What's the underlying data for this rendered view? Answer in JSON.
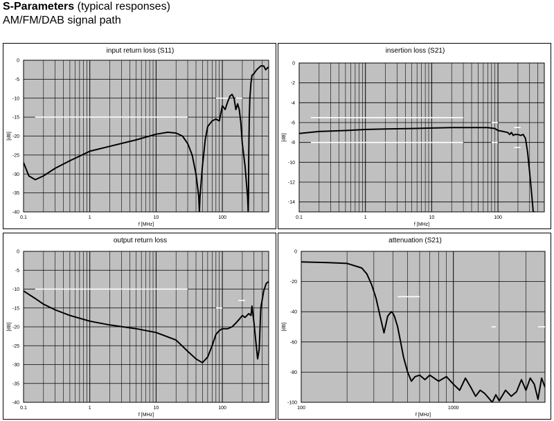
{
  "header": {
    "title_bold": "S-Parameters",
    "title_rest": "(typical responses)",
    "subtitle": "AM/FM/DAB signal path"
  },
  "chart_data": [
    {
      "id": "s11",
      "type": "line",
      "title": "input return loss (S11)",
      "xlabel": "f [MHz]",
      "ylabel": "[dB]",
      "xscale": "log",
      "xlim": [
        0.1,
        500
      ],
      "ylim": [
        -40,
        0
      ],
      "xticks": [
        0.1,
        1,
        10,
        100
      ],
      "xtick_labels": [
        "0.1",
        "1",
        "10",
        "100"
      ],
      "yticks": [
        0,
        -5,
        -10,
        -15,
        -20,
        -25,
        -30,
        -35,
        -40
      ],
      "ytick_labels": [
        "0",
        "-5",
        "-10",
        "-15",
        "-20",
        "-25",
        "-30",
        "-35",
        "-40"
      ],
      "grid": true,
      "series": [
        {
          "x": [
            0.1,
            0.12,
            0.15,
            0.2,
            0.3,
            0.5,
            1,
            2,
            5,
            10,
            15,
            20,
            25,
            30,
            35,
            40,
            44,
            45,
            46,
            50,
            55,
            60,
            70,
            80,
            90,
            100,
            110,
            120,
            130,
            140,
            150,
            160,
            170,
            180,
            190,
            200,
            220,
            240,
            245,
            248,
            250,
            255,
            260,
            270,
            280,
            300,
            330,
            380,
            420,
            450,
            480,
            500
          ],
          "y": [
            -27,
            -30.5,
            -31.5,
            -30.5,
            -28.5,
            -26.5,
            -24,
            -22.7,
            -21,
            -19.5,
            -19,
            -19.2,
            -20,
            -22,
            -25,
            -30,
            -36,
            -40,
            -36,
            -28,
            -21,
            -17.5,
            -16,
            -15.5,
            -16,
            -12,
            -13,
            -11,
            -9.5,
            -9,
            -10,
            -13,
            -11.5,
            -13,
            -16.5,
            -22,
            -28,
            -36,
            -40,
            -35,
            -25,
            -15,
            -10,
            -6,
            -4,
            -3.5,
            -2.5,
            -1.5,
            -1.5,
            -2.5,
            -2,
            -1.8
          ]
        }
      ],
      "limits": [
        {
          "x": [
            0.15,
            30
          ],
          "y": -15
        },
        {
          "x": [
            80,
            130
          ],
          "y": -10
        },
        {
          "x": [
            160,
            200
          ],
          "y": -10
        }
      ]
    },
    {
      "id": "s21",
      "type": "line",
      "title": "insertion loss (S21)",
      "xlabel": "f [MHz]",
      "ylabel": "[dB]",
      "xscale": "log",
      "xlim": [
        0.1,
        500
      ],
      "ylim": [
        -15,
        0
      ],
      "xticks": [
        0.1,
        1,
        10,
        100
      ],
      "xtick_labels": [
        "0.1",
        "1",
        "10",
        "100"
      ],
      "yticks": [
        0,
        -2,
        -4,
        -6,
        -8,
        -10,
        -12,
        -14
      ],
      "ytick_labels": [
        "0",
        "-2",
        "-4",
        "-6",
        "-8",
        "-10",
        "-12",
        "-14"
      ],
      "grid": true,
      "series": [
        {
          "x": [
            0.1,
            0.2,
            0.5,
            1,
            2,
            5,
            10,
            20,
            30,
            50,
            70,
            90,
            100,
            120,
            140,
            150,
            160,
            170,
            180,
            200,
            220,
            240,
            260,
            280,
            300,
            320,
            340,
            360
          ],
          "y": [
            -7.1,
            -6.9,
            -6.8,
            -6.7,
            -6.65,
            -6.6,
            -6.55,
            -6.5,
            -6.5,
            -6.5,
            -6.5,
            -6.6,
            -6.8,
            -6.9,
            -7.0,
            -7.2,
            -7.0,
            -7.3,
            -7.2,
            -7.2,
            -7.3,
            -7.2,
            -7.6,
            -9,
            -11,
            -13,
            -15,
            -15
          ]
        }
      ],
      "limits": [
        {
          "x": [
            0.15,
            30
          ],
          "y": -5.5
        },
        {
          "x": [
            0.15,
            30
          ],
          "y": -8
        },
        {
          "x": [
            80,
            100
          ],
          "y": -6
        },
        {
          "x": [
            80,
            100
          ],
          "y": -8
        },
        {
          "x": [
            175,
            220
          ],
          "y": -6.5
        },
        {
          "x": [
            175,
            220
          ],
          "y": -8.5
        }
      ]
    },
    {
      "id": "s22",
      "type": "line",
      "title": "output return loss",
      "xlabel": "f [MHz]",
      "ylabel": "[dB]",
      "xscale": "log",
      "xlim": [
        0.1,
        500
      ],
      "ylim": [
        -40,
        0
      ],
      "xticks": [
        0.1,
        1,
        10,
        100
      ],
      "xtick_labels": [
        "0.1",
        "1",
        "10",
        "100"
      ],
      "yticks": [
        0,
        -5,
        -10,
        -15,
        -20,
        -25,
        -30,
        -35,
        -40
      ],
      "ytick_labels": [
        "0",
        "-5",
        "-10",
        "-15",
        "-20",
        "-25",
        "-30",
        "-35",
        "-40"
      ],
      "grid": true,
      "series": [
        {
          "x": [
            0.1,
            0.15,
            0.2,
            0.3,
            0.5,
            1,
            2,
            5,
            10,
            20,
            30,
            40,
            50,
            60,
            70,
            80,
            90,
            100,
            120,
            140,
            160,
            180,
            200,
            220,
            250,
            270,
            280,
            300,
            320,
            340,
            360,
            380,
            420,
            460,
            500
          ],
          "y": [
            -10.5,
            -12.5,
            -14,
            -15.5,
            -17,
            -18.5,
            -19.5,
            -20.5,
            -21.5,
            -23.5,
            -26.5,
            -28.5,
            -29.5,
            -28,
            -25,
            -22,
            -21,
            -20.5,
            -20.5,
            -20,
            -19,
            -18,
            -17,
            -17.5,
            -16.5,
            -17,
            -14.5,
            -19,
            -24,
            -28.5,
            -26,
            -15,
            -10.5,
            -8.5,
            -8
          ]
        }
      ],
      "limits": [
        {
          "x": [
            0.15,
            30
          ],
          "y": -10
        },
        {
          "x": [
            80,
            100
          ],
          "y": -15
        },
        {
          "x": [
            175,
            220
          ],
          "y": -13
        }
      ]
    },
    {
      "id": "att",
      "type": "line",
      "title": "attenuation (S21)",
      "xlabel": "f [MHz]",
      "ylabel": "[dB]",
      "xscale": "log",
      "xlim": [
        100,
        4000
      ],
      "ylim": [
        -100,
        0
      ],
      "xticks": [
        100,
        1000
      ],
      "xtick_labels": [
        "100",
        "1000"
      ],
      "yticks": [
        0,
        -20,
        -40,
        -60,
        -80,
        -100
      ],
      "ytick_labels": [
        "0",
        "-20",
        "-40",
        "-60",
        "-80",
        "-100"
      ],
      "grid": true,
      "series": [
        {
          "x": [
            100,
            150,
            200,
            250,
            270,
            290,
            310,
            330,
            350,
            370,
            390,
            400,
            410,
            430,
            450,
            470,
            500,
            530,
            560,
            600,
            650,
            700,
            800,
            900,
            1000,
            1100,
            1200,
            1300,
            1400,
            1500,
            1600,
            1700,
            1800,
            1900,
            2000,
            2200,
            2400,
            2600,
            2800,
            3000,
            3200,
            3400,
            3600,
            3800,
            4000
          ],
          "y": [
            -7,
            -7.5,
            -8,
            -11,
            -15,
            -22,
            -31,
            -43,
            -54,
            -43,
            -40,
            -41,
            -43,
            -50,
            -60,
            -70,
            -80,
            -86,
            -83,
            -82,
            -85,
            -82,
            -86,
            -83,
            -88,
            -92,
            -84,
            -90,
            -96,
            -92,
            -94,
            -97,
            -100,
            -95,
            -99,
            -92,
            -96,
            -93,
            -85,
            -92,
            -84,
            -88,
            -98,
            -84,
            -90
          ]
        }
      ],
      "limits": [
        {
          "x": [
            430,
            600
          ],
          "y": -30
        },
        {
          "x": [
            1780,
            1900
          ],
          "y": -50
        },
        {
          "x": [
            3600,
            4000
          ],
          "y": -50
        }
      ]
    }
  ]
}
